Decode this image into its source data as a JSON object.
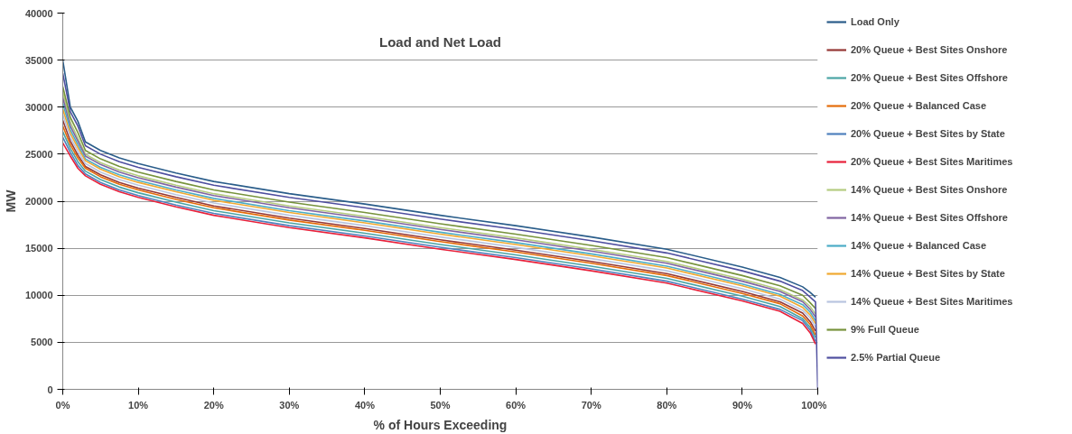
{
  "chart_data": {
    "type": "line",
    "title": "Load and Net Load",
    "xlabel": "% of Hours Exceeding",
    "ylabel": "MW",
    "x": [
      0,
      1,
      2,
      3,
      5,
      7.5,
      10,
      15,
      20,
      30,
      40,
      50,
      60,
      70,
      80,
      90,
      95,
      98,
      99,
      99.7
    ],
    "xlim": [
      0,
      100
    ],
    "ylim": [
      0,
      40000
    ],
    "xticks": [
      {
        "value": 0,
        "label": "0%"
      },
      {
        "value": 10,
        "label": "10%"
      },
      {
        "value": 20,
        "label": "20%"
      },
      {
        "value": 30,
        "label": "30%"
      },
      {
        "value": 40,
        "label": "40%"
      },
      {
        "value": 50,
        "label": "50%"
      },
      {
        "value": 60,
        "label": "60%"
      },
      {
        "value": 70,
        "label": "70%"
      },
      {
        "value": 80,
        "label": "80%"
      },
      {
        "value": 90,
        "label": "90%"
      },
      {
        "value": 100,
        "label": "100%"
      }
    ],
    "yticks": [
      0,
      5000,
      10000,
      15000,
      20000,
      25000,
      30000,
      35000,
      40000
    ],
    "grid": "y",
    "legend": "right",
    "marker": "none",
    "line_style": "solid",
    "series": [
      {
        "name": "Load Only",
        "color": "#2a5d8a",
        "values": [
          35000,
          30000,
          28500,
          26300,
          25400,
          24600,
          24000,
          23000,
          22100,
          20800,
          19700,
          18500,
          17400,
          16200,
          14900,
          13000,
          11900,
          10900,
          10300,
          9800
        ]
      },
      {
        "name": "20% Queue + Best Sites Onshore",
        "color": "#953735",
        "values": [
          28600,
          26400,
          24900,
          23700,
          22800,
          22000,
          21400,
          20400,
          19500,
          18200,
          17100,
          15900,
          14800,
          13600,
          12300,
          10400,
          9300,
          8100,
          7200,
          6200
        ]
      },
      {
        "name": "20% Queue + Best Sites Offshore",
        "color": "#4aa5a5",
        "values": [
          27400,
          25600,
          24200,
          23200,
          22300,
          21500,
          20900,
          19900,
          19000,
          17700,
          16600,
          15400,
          14300,
          13100,
          11800,
          9900,
          8800,
          7500,
          6600,
          5500
        ]
      },
      {
        "name": "20% Queue + Balanced Case",
        "color": "#e46c0a",
        "values": [
          28000,
          26000,
          24600,
          23500,
          22600,
          21800,
          21200,
          20200,
          19300,
          18000,
          16900,
          15700,
          14600,
          13400,
          12100,
          10200,
          9100,
          7800,
          6900,
          5800
        ]
      },
      {
        "name": "20% Queue + Best Sites by State",
        "color": "#4f81bd",
        "values": [
          26800,
          25200,
          23800,
          22900,
          22000,
          21200,
          20600,
          19600,
          18700,
          17400,
          16300,
          15100,
          14000,
          12800,
          11500,
          9600,
          8500,
          7300,
          6300,
          5100
        ]
      },
      {
        "name": "20% Queue + Best Sites Maritimes",
        "color": "#e8203a",
        "values": [
          26200,
          24800,
          23500,
          22700,
          21800,
          21000,
          20400,
          19400,
          18500,
          17200,
          16100,
          14900,
          13800,
          12600,
          11300,
          9400,
          8300,
          7000,
          6000,
          4800
        ]
      },
      {
        "name": "14% Queue + Best Sites Onshore",
        "color": "#b5cc80",
        "values": [
          31600,
          28400,
          26700,
          25000,
          24100,
          23300,
          22700,
          21700,
          20800,
          19500,
          18400,
          17200,
          16100,
          14900,
          13600,
          11700,
          10600,
          9500,
          8800,
          8000
        ]
      },
      {
        "name": "14% Queue + Best Sites Offshore",
        "color": "#8064a2",
        "values": [
          31000,
          28000,
          26400,
          24800,
          23900,
          23100,
          22500,
          21500,
          20600,
          19300,
          18200,
          17000,
          15900,
          14700,
          13400,
          11500,
          10400,
          9300,
          8500,
          7700
        ]
      },
      {
        "name": "14% Queue + Balanced Case",
        "color": "#4bacc6",
        "values": [
          30400,
          27600,
          26000,
          24500,
          23600,
          22800,
          22200,
          21200,
          20300,
          19000,
          17900,
          16700,
          15600,
          14400,
          13100,
          11200,
          10100,
          9000,
          8200,
          7300
        ]
      },
      {
        "name": "14% Queue + Best Sites by State",
        "color": "#f0a830",
        "values": [
          29800,
          27200,
          25700,
          24300,
          23400,
          22600,
          22000,
          21000,
          20100,
          18800,
          17700,
          16500,
          15400,
          14200,
          12900,
          11000,
          9900,
          8700,
          7900,
          7000
        ]
      },
      {
        "name": "14% Queue + Best Sites Maritimes",
        "color": "#b9c5e0",
        "values": [
          29200,
          26800,
          25300,
          24000,
          23100,
          22300,
          21700,
          20700,
          19800,
          18500,
          17400,
          16200,
          15100,
          13900,
          12600,
          10700,
          9600,
          8400,
          7600,
          6600
        ]
      },
      {
        "name": "9% Full Queue",
        "color": "#77933c",
        "values": [
          32200,
          28900,
          27300,
          25400,
          24500,
          23700,
          23100,
          22100,
          21200,
          19900,
          18800,
          17600,
          16500,
          15300,
          14000,
          12100,
          11000,
          10000,
          9200,
          8600
        ]
      },
      {
        "name": "2.5% Partial Queue",
        "color": "#4f4f9f",
        "x": [
          0,
          1,
          2,
          3,
          5,
          7.5,
          10,
          15,
          20,
          30,
          40,
          50,
          60,
          70,
          80,
          90,
          95,
          98,
          99,
          99.7,
          100
        ],
        "values": [
          33600,
          29500,
          28000,
          25900,
          25000,
          24200,
          23600,
          22600,
          21700,
          20400,
          19300,
          18100,
          17000,
          15800,
          14500,
          12600,
          11500,
          10500,
          9800,
          9300,
          0
        ]
      }
    ]
  }
}
